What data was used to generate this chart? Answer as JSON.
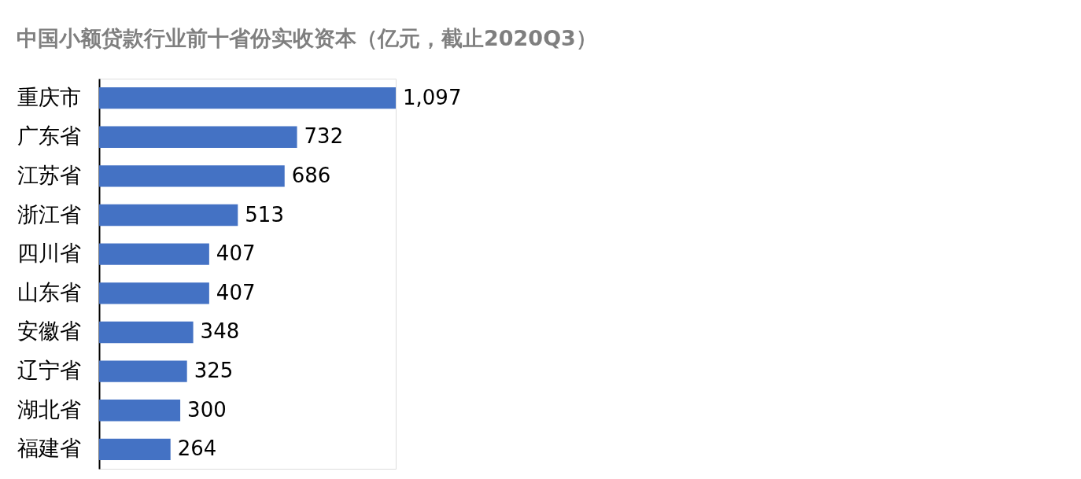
{
  "chart_data": {
    "type": "bar",
    "orientation": "horizontal",
    "title": "中国小额贷款行业前十省份实收资本（亿元，截止2020Q3）",
    "categories": [
      "重庆市",
      "广东省",
      "江苏省",
      "浙江省",
      "四川省",
      "山东省",
      "安徽省",
      "辽宁省",
      "湖北省",
      "福建省"
    ],
    "values": [
      1097,
      732,
      686,
      513,
      407,
      407,
      348,
      325,
      300,
      264
    ],
    "value_labels": [
      "1,097",
      "732",
      "686",
      "513",
      "407",
      "407",
      "348",
      "325",
      "300",
      "264"
    ],
    "color": "#4472c4"
  }
}
